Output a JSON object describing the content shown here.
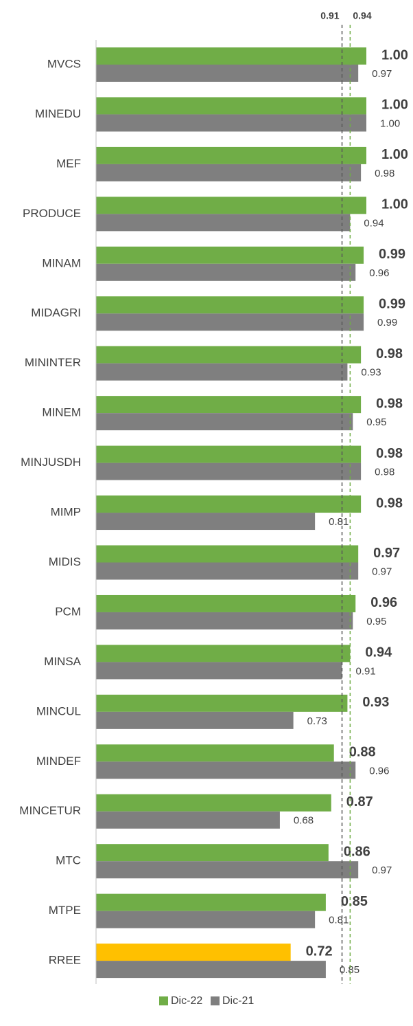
{
  "chart_data": {
    "type": "hbar",
    "categories": [
      "MVCS",
      "MINEDU",
      "MEF",
      "PRODUCE",
      "MINAM",
      "MIDAGRI",
      "MININTER",
      "MINEM",
      "MINJUSDH",
      "MIMP",
      "MIDIS",
      "PCM",
      "MINSA",
      "MINCUL",
      "MINDEF",
      "MINCETUR",
      "MTC",
      "MTPE",
      "RREE"
    ],
    "series": [
      {
        "name": "Dic-22",
        "color": "#70ad47",
        "colors": [
          "#70ad47",
          "#70ad47",
          "#70ad47",
          "#70ad47",
          "#70ad47",
          "#70ad47",
          "#70ad47",
          "#70ad47",
          "#70ad47",
          "#70ad47",
          "#70ad47",
          "#70ad47",
          "#70ad47",
          "#70ad47",
          "#70ad47",
          "#70ad47",
          "#70ad47",
          "#70ad47",
          "#ffc000"
        ],
        "values": [
          1.0,
          1.0,
          1.0,
          1.0,
          0.99,
          0.99,
          0.98,
          0.98,
          0.98,
          0.98,
          0.97,
          0.96,
          0.94,
          0.93,
          0.88,
          0.87,
          0.86,
          0.85,
          0.72
        ],
        "value_labels": [
          "1.00",
          "1.00",
          "1.00",
          "1.00",
          "0.99",
          "0.99",
          "0.98",
          "0.98",
          "0.98",
          "0.98",
          "0.97",
          "0.96",
          "0.94",
          "0.93",
          "0.88",
          "0.87",
          "0.86",
          "0.85",
          "0.72"
        ]
      },
      {
        "name": "Dic-21",
        "color": "#7f7f7f",
        "values": [
          0.97,
          1.0,
          0.98,
          0.94,
          0.96,
          0.99,
          0.93,
          0.95,
          0.98,
          0.81,
          0.97,
          0.95,
          0.91,
          0.73,
          0.96,
          0.68,
          0.97,
          0.81,
          0.85
        ],
        "value_labels": [
          "0.97",
          "1.00",
          "0.98",
          "0.94",
          "0.96",
          "0.99",
          "0.93",
          "0.95",
          "0.98",
          "0.81",
          "0.97",
          "0.95",
          "0.91",
          "0.73",
          "0.96",
          "0.68",
          "0.97",
          "0.81",
          "0.85"
        ]
      }
    ],
    "reference_lines": [
      {
        "value": 0.91,
        "color": "#595959"
      },
      {
        "value": 0.94,
        "color": "#70ad47"
      }
    ],
    "xlim": [
      0,
      1.1
    ],
    "legend": "bottom"
  }
}
